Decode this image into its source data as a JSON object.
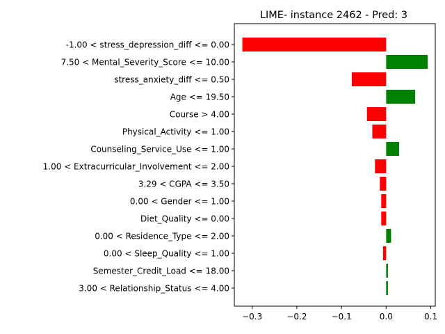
{
  "chart_data": {
    "type": "bar",
    "orientation": "horizontal",
    "title": "LIME- instance 2462 - Pred: 3",
    "xlabel": "",
    "ylabel": "",
    "xlim": [
      -0.34,
      0.11
    ],
    "xticks": [
      -0.3,
      -0.2,
      -0.1,
      0.0,
      0.1
    ],
    "xtick_labels": [
      "−0.3",
      "−0.2",
      "−0.1",
      "0.0",
      "0.1"
    ],
    "grid": false,
    "colors": {
      "positive": "#008000",
      "negative": "#ff0000"
    },
    "categories": [
      "-1.00 < stress_depression_diff <= 0.00",
      "7.50 < Mental_Severity_Score <= 10.00",
      "stress_anxiety_diff <= 0.50",
      "Age <= 19.50",
      "Course > 4.00",
      "Physical_Activity <= 1.00",
      "Counseling_Service_Use <= 1.00",
      "1.00 < Extracurricular_Involvement <= 2.00",
      "3.29 < CGPA <= 3.50",
      "0.00 < Gender <= 1.00",
      "Diet_Quality <= 0.00",
      "0.00 < Residence_Type <= 2.00",
      "0.00 < Sleep_Quality <= 1.00",
      "Semester_Credit_Load <= 18.00",
      "3.00 < Relationship_Status <= 4.00"
    ],
    "values": [
      -0.322,
      0.093,
      -0.077,
      0.065,
      -0.043,
      -0.031,
      0.029,
      -0.025,
      -0.014,
      -0.011,
      -0.011,
      0.011,
      -0.007,
      0.004,
      0.004
    ]
  }
}
